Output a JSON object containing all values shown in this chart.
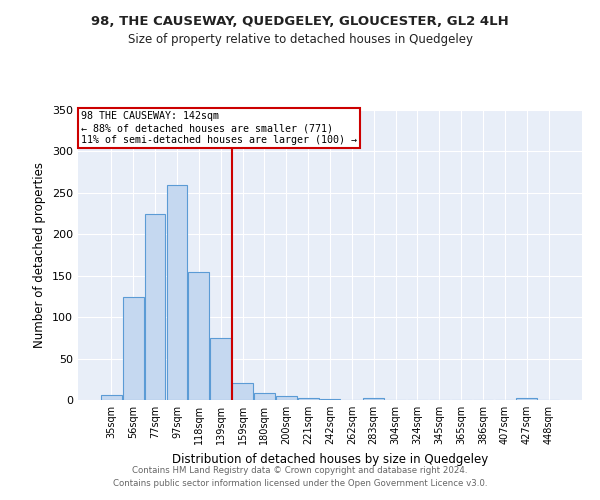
{
  "title": "98, THE CAUSEWAY, QUEDGELEY, GLOUCESTER, GL2 4LH",
  "subtitle": "Size of property relative to detached houses in Quedgeley",
  "xlabel": "Distribution of detached houses by size in Quedgeley",
  "ylabel": "Number of detached properties",
  "footer_line1": "Contains HM Land Registry data © Crown copyright and database right 2024.",
  "footer_line2": "Contains public sector information licensed under the Open Government Licence v3.0.",
  "annotation_line1": "98 THE CAUSEWAY: 142sqm",
  "annotation_line2": "← 88% of detached houses are smaller (771)",
  "annotation_line3": "11% of semi-detached houses are larger (100) →",
  "bar_labels": [
    "35sqm",
    "56sqm",
    "77sqm",
    "97sqm",
    "118sqm",
    "139sqm",
    "159sqm",
    "180sqm",
    "200sqm",
    "221sqm",
    "242sqm",
    "262sqm",
    "283sqm",
    "304sqm",
    "324sqm",
    "345sqm",
    "365sqm",
    "386sqm",
    "407sqm",
    "427sqm",
    "448sqm"
  ],
  "bar_values": [
    6,
    124,
    224,
    260,
    154,
    75,
    21,
    9,
    5,
    3,
    1,
    0,
    3,
    0,
    0,
    0,
    0,
    0,
    0,
    3,
    0
  ],
  "bar_color": "#c5d8f0",
  "bar_edge_color": "#5b9bd5",
  "vline_x": 5.5,
  "vline_color": "#cc0000",
  "annotation_box_color": "#cc0000",
  "background_color": "#e8eef8",
  "ylim": [
    0,
    350
  ],
  "yticks": [
    0,
    50,
    100,
    150,
    200,
    250,
    300,
    350
  ],
  "fig_width": 6.0,
  "fig_height": 5.0,
  "dpi": 100
}
